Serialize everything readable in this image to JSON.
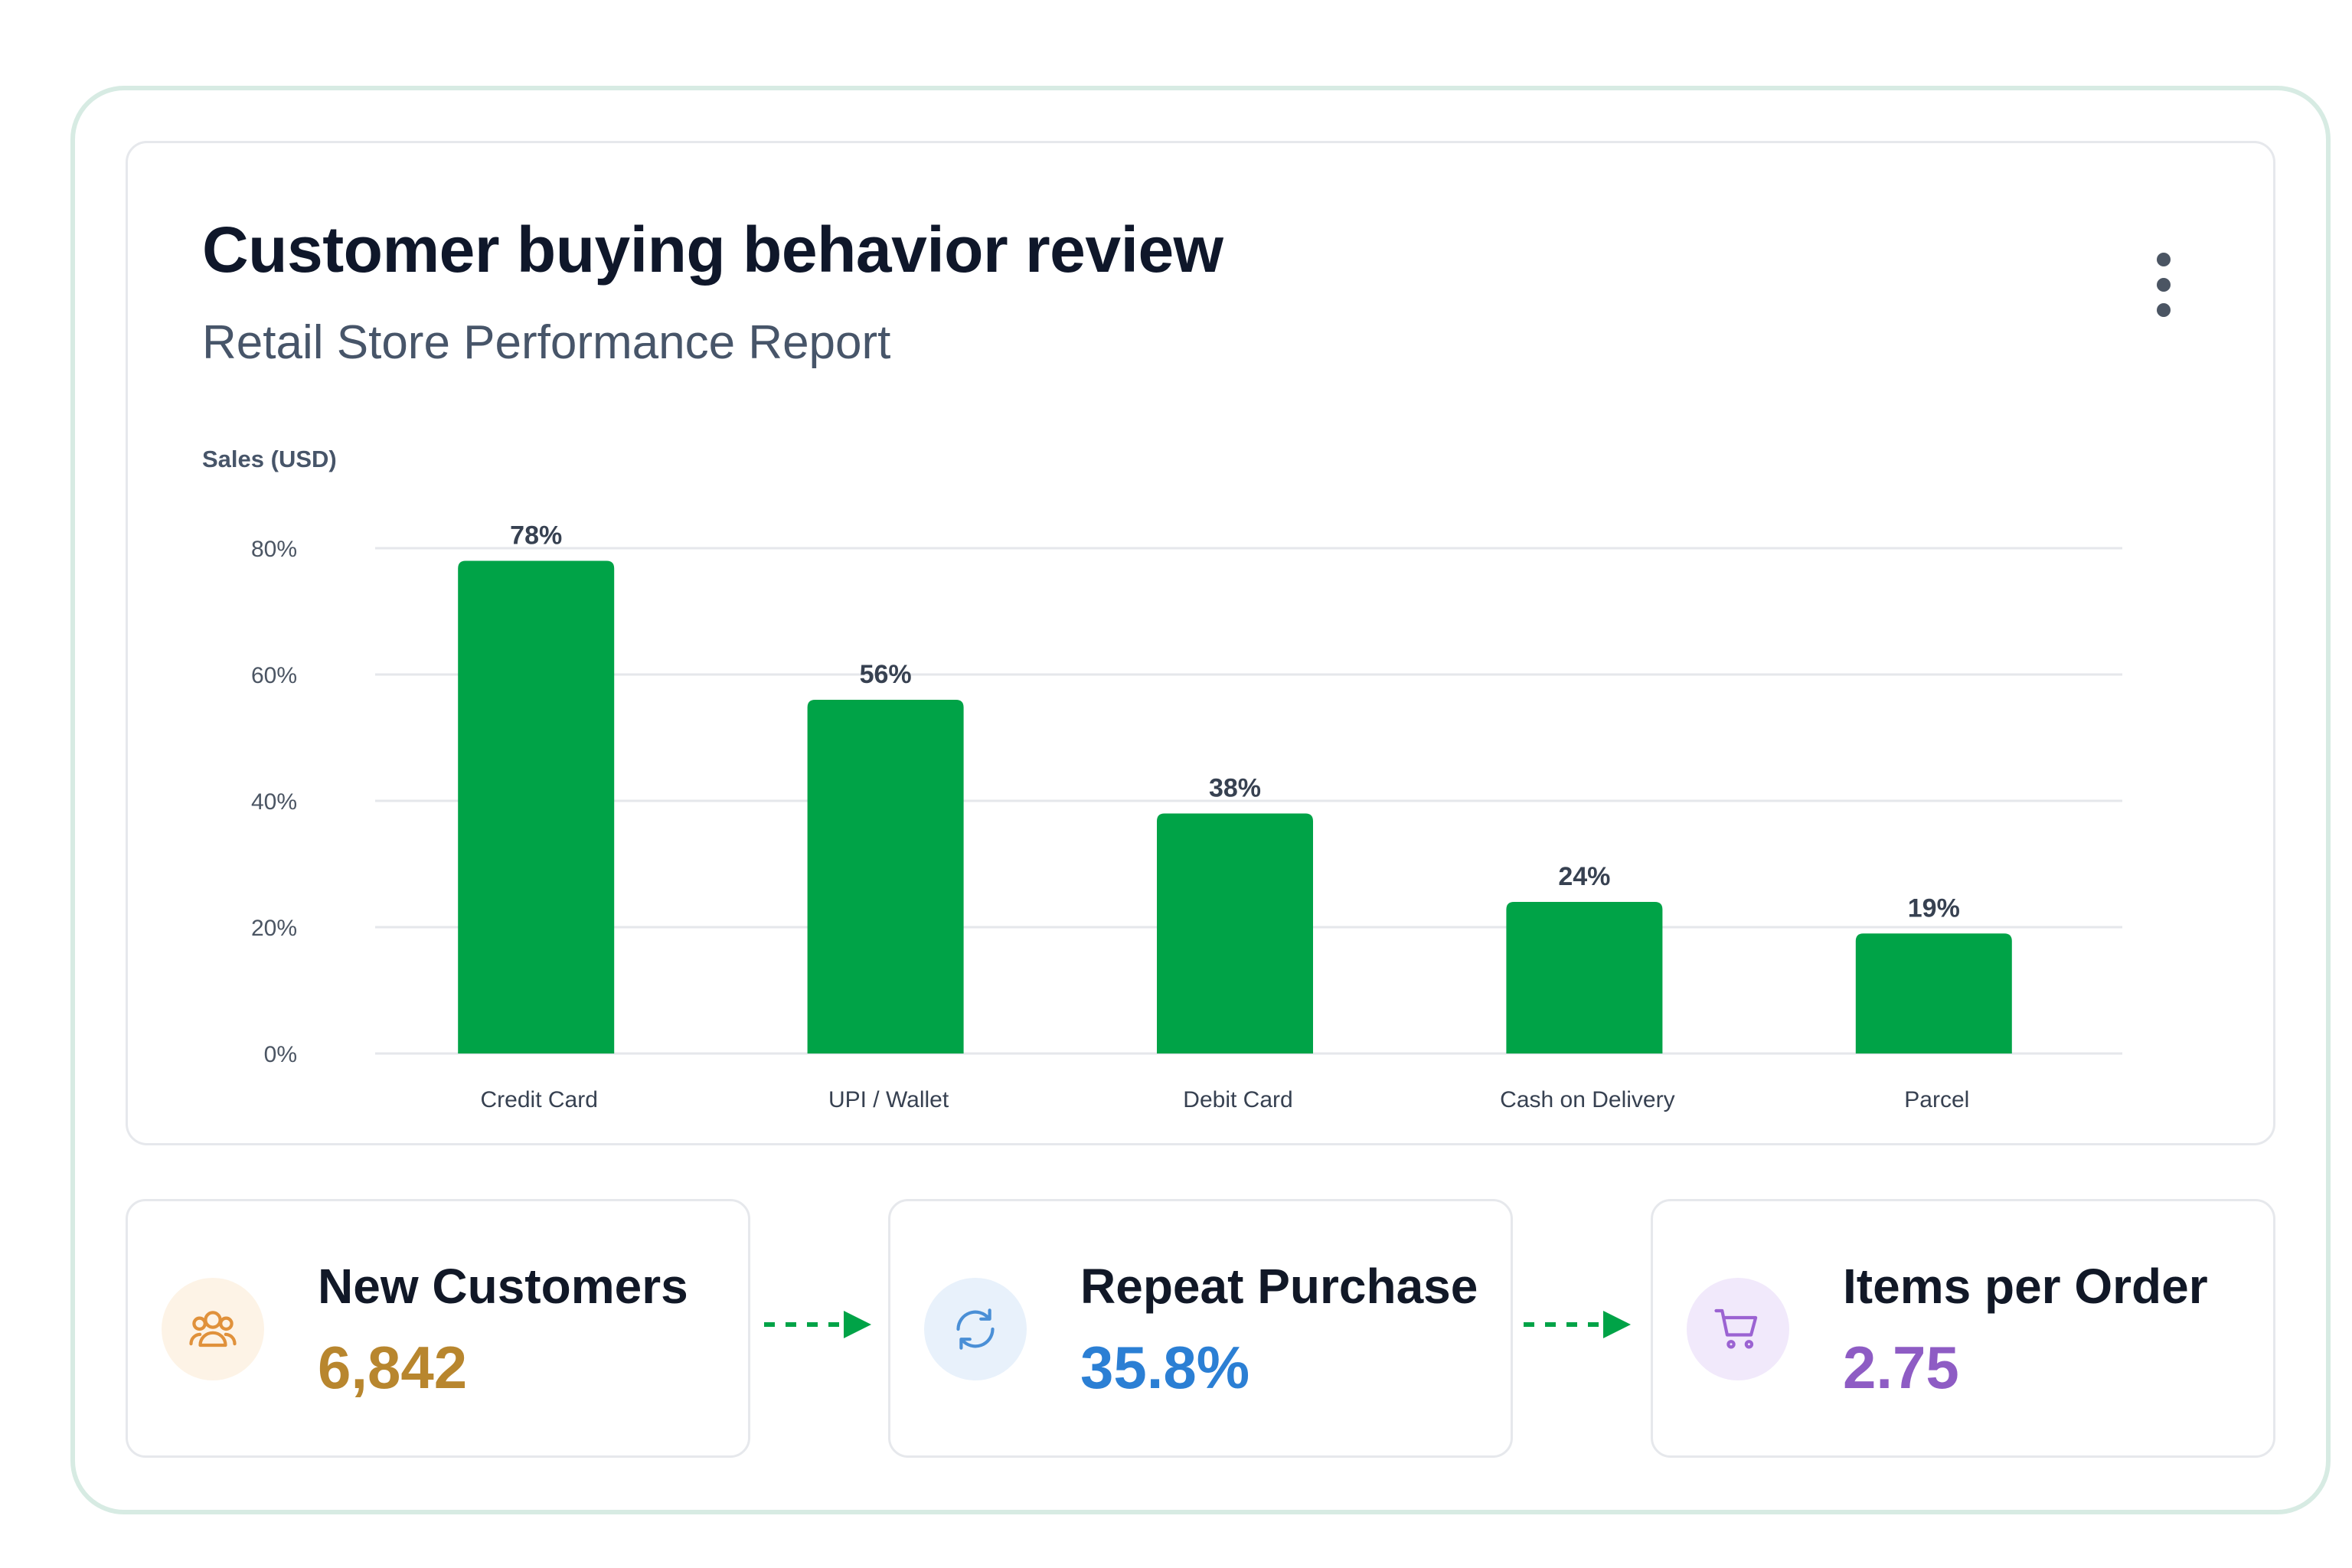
{
  "header": {
    "title": "Customer buying behavior review",
    "subtitle": "Retail Store Performance Report",
    "menu_icon": "more-vertical-icon"
  },
  "chart_data": {
    "type": "bar",
    "ylabel": "Sales (USD)",
    "categories": [
      "Credit Card",
      "UPI / Wallet",
      "Debit Card",
      "Cash on Delivery",
      "Parcel"
    ],
    "values": [
      78,
      56,
      38,
      24,
      19
    ],
    "data_labels": [
      "78%",
      "56%",
      "38%",
      "24%",
      "19%"
    ],
    "y_ticks": [
      0,
      20,
      40,
      60,
      80
    ],
    "y_tick_labels": [
      "0%",
      "20%",
      "40%",
      "60%",
      "80%"
    ],
    "ylim": [
      0,
      80
    ],
    "grid": true,
    "colors": {
      "bar": "#00a347"
    }
  },
  "stats": [
    {
      "label": "New Customers",
      "value": "6,842",
      "icon": "users-icon",
      "color": "#b8862e",
      "icon_bg": "#fdf3e6",
      "icon_color": "#e0913b"
    },
    {
      "label": "Repeat Purchase",
      "value": "35.8%",
      "icon": "refresh-icon",
      "color": "#2b7fd4",
      "icon_bg": "#e8f1fb",
      "icon_color": "#4a8fd6"
    },
    {
      "label": "Items per Order",
      "value": "2.75",
      "icon": "cart-icon",
      "color": "#8e5cc4",
      "icon_bg": "#f1e9fb",
      "icon_color": "#9b63d2"
    }
  ],
  "colors": {
    "frame_border": "#d7ebe3",
    "arrow": "#00a347"
  }
}
